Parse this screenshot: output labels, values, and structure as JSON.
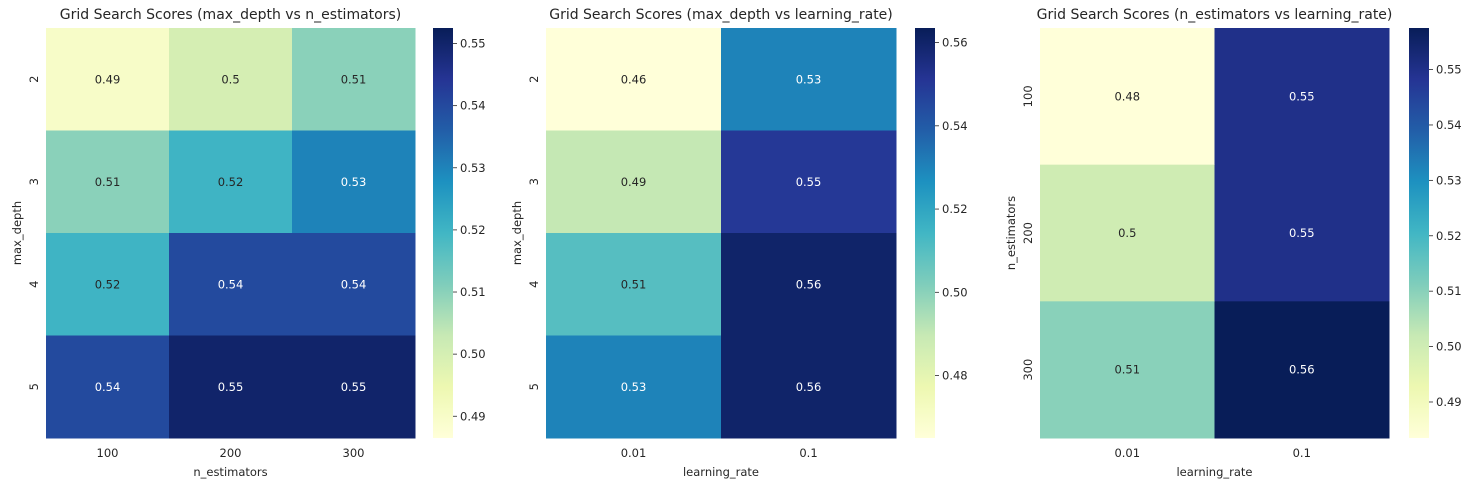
{
  "chart_data": [
    {
      "type": "heatmap",
      "title": "Grid Search Scores (max_depth vs n_estimators)",
      "xlabel": "n_estimators",
      "ylabel": "max_depth",
      "x_categories": [
        "100",
        "200",
        "300"
      ],
      "y_categories": [
        "2",
        "3",
        "4",
        "5"
      ],
      "values": [
        [
          0.49,
          0.5,
          0.51
        ],
        [
          0.51,
          0.52,
          0.53
        ],
        [
          0.52,
          0.54,
          0.54
        ],
        [
          0.54,
          0.55,
          0.55
        ]
      ],
      "labels": [
        [
          "0.49",
          "0.5",
          "0.51"
        ],
        [
          "0.51",
          "0.52",
          "0.53"
        ],
        [
          "0.52",
          "0.54",
          "0.54"
        ],
        [
          "0.54",
          "0.55",
          "0.55"
        ]
      ],
      "colorbar": {
        "range": [
          0.4865,
          0.5525
        ],
        "ticks": [
          "0.49",
          "0.50",
          "0.51",
          "0.52",
          "0.53",
          "0.54",
          "0.55"
        ]
      },
      "colormap": "YlGnBu"
    },
    {
      "type": "heatmap",
      "title": "Grid Search Scores (max_depth vs learning_rate)",
      "xlabel": "learning_rate",
      "ylabel": "max_depth",
      "x_categories": [
        "0.01",
        "0.1"
      ],
      "y_categories": [
        "2",
        "3",
        "4",
        "5"
      ],
      "values": [
        [
          0.46,
          0.53
        ],
        [
          0.49,
          0.55
        ],
        [
          0.51,
          0.56
        ],
        [
          0.53,
          0.56
        ]
      ],
      "labels": [
        [
          "0.46",
          "0.53"
        ],
        [
          "0.49",
          "0.55"
        ],
        [
          "0.51",
          "0.56"
        ],
        [
          "0.53",
          "0.56"
        ]
      ],
      "colorbar": {
        "range": [
          0.465,
          0.5635
        ],
        "ticks": [
          "0.48",
          "0.50",
          "0.52",
          "0.54",
          "0.56"
        ]
      },
      "colormap": "YlGnBu"
    },
    {
      "type": "heatmap",
      "title": "Grid Search Scores (n_estimators vs learning_rate)",
      "xlabel": "learning_rate",
      "ylabel": "n_estimators",
      "x_categories": [
        "0.01",
        "0.1"
      ],
      "y_categories": [
        "100",
        "200",
        "300"
      ],
      "values": [
        [
          0.48,
          0.55
        ],
        [
          0.5,
          0.55
        ],
        [
          0.51,
          0.56
        ]
      ],
      "labels": [
        [
          "0.48",
          "0.55"
        ],
        [
          "0.5",
          "0.55"
        ],
        [
          "0.51",
          "0.56"
        ]
      ],
      "colorbar": {
        "range": [
          0.4835,
          0.5575
        ],
        "ticks": [
          "0.49",
          "0.50",
          "0.51",
          "0.52",
          "0.53",
          "0.54",
          "0.55"
        ]
      },
      "colormap": "YlGnBu"
    }
  ]
}
